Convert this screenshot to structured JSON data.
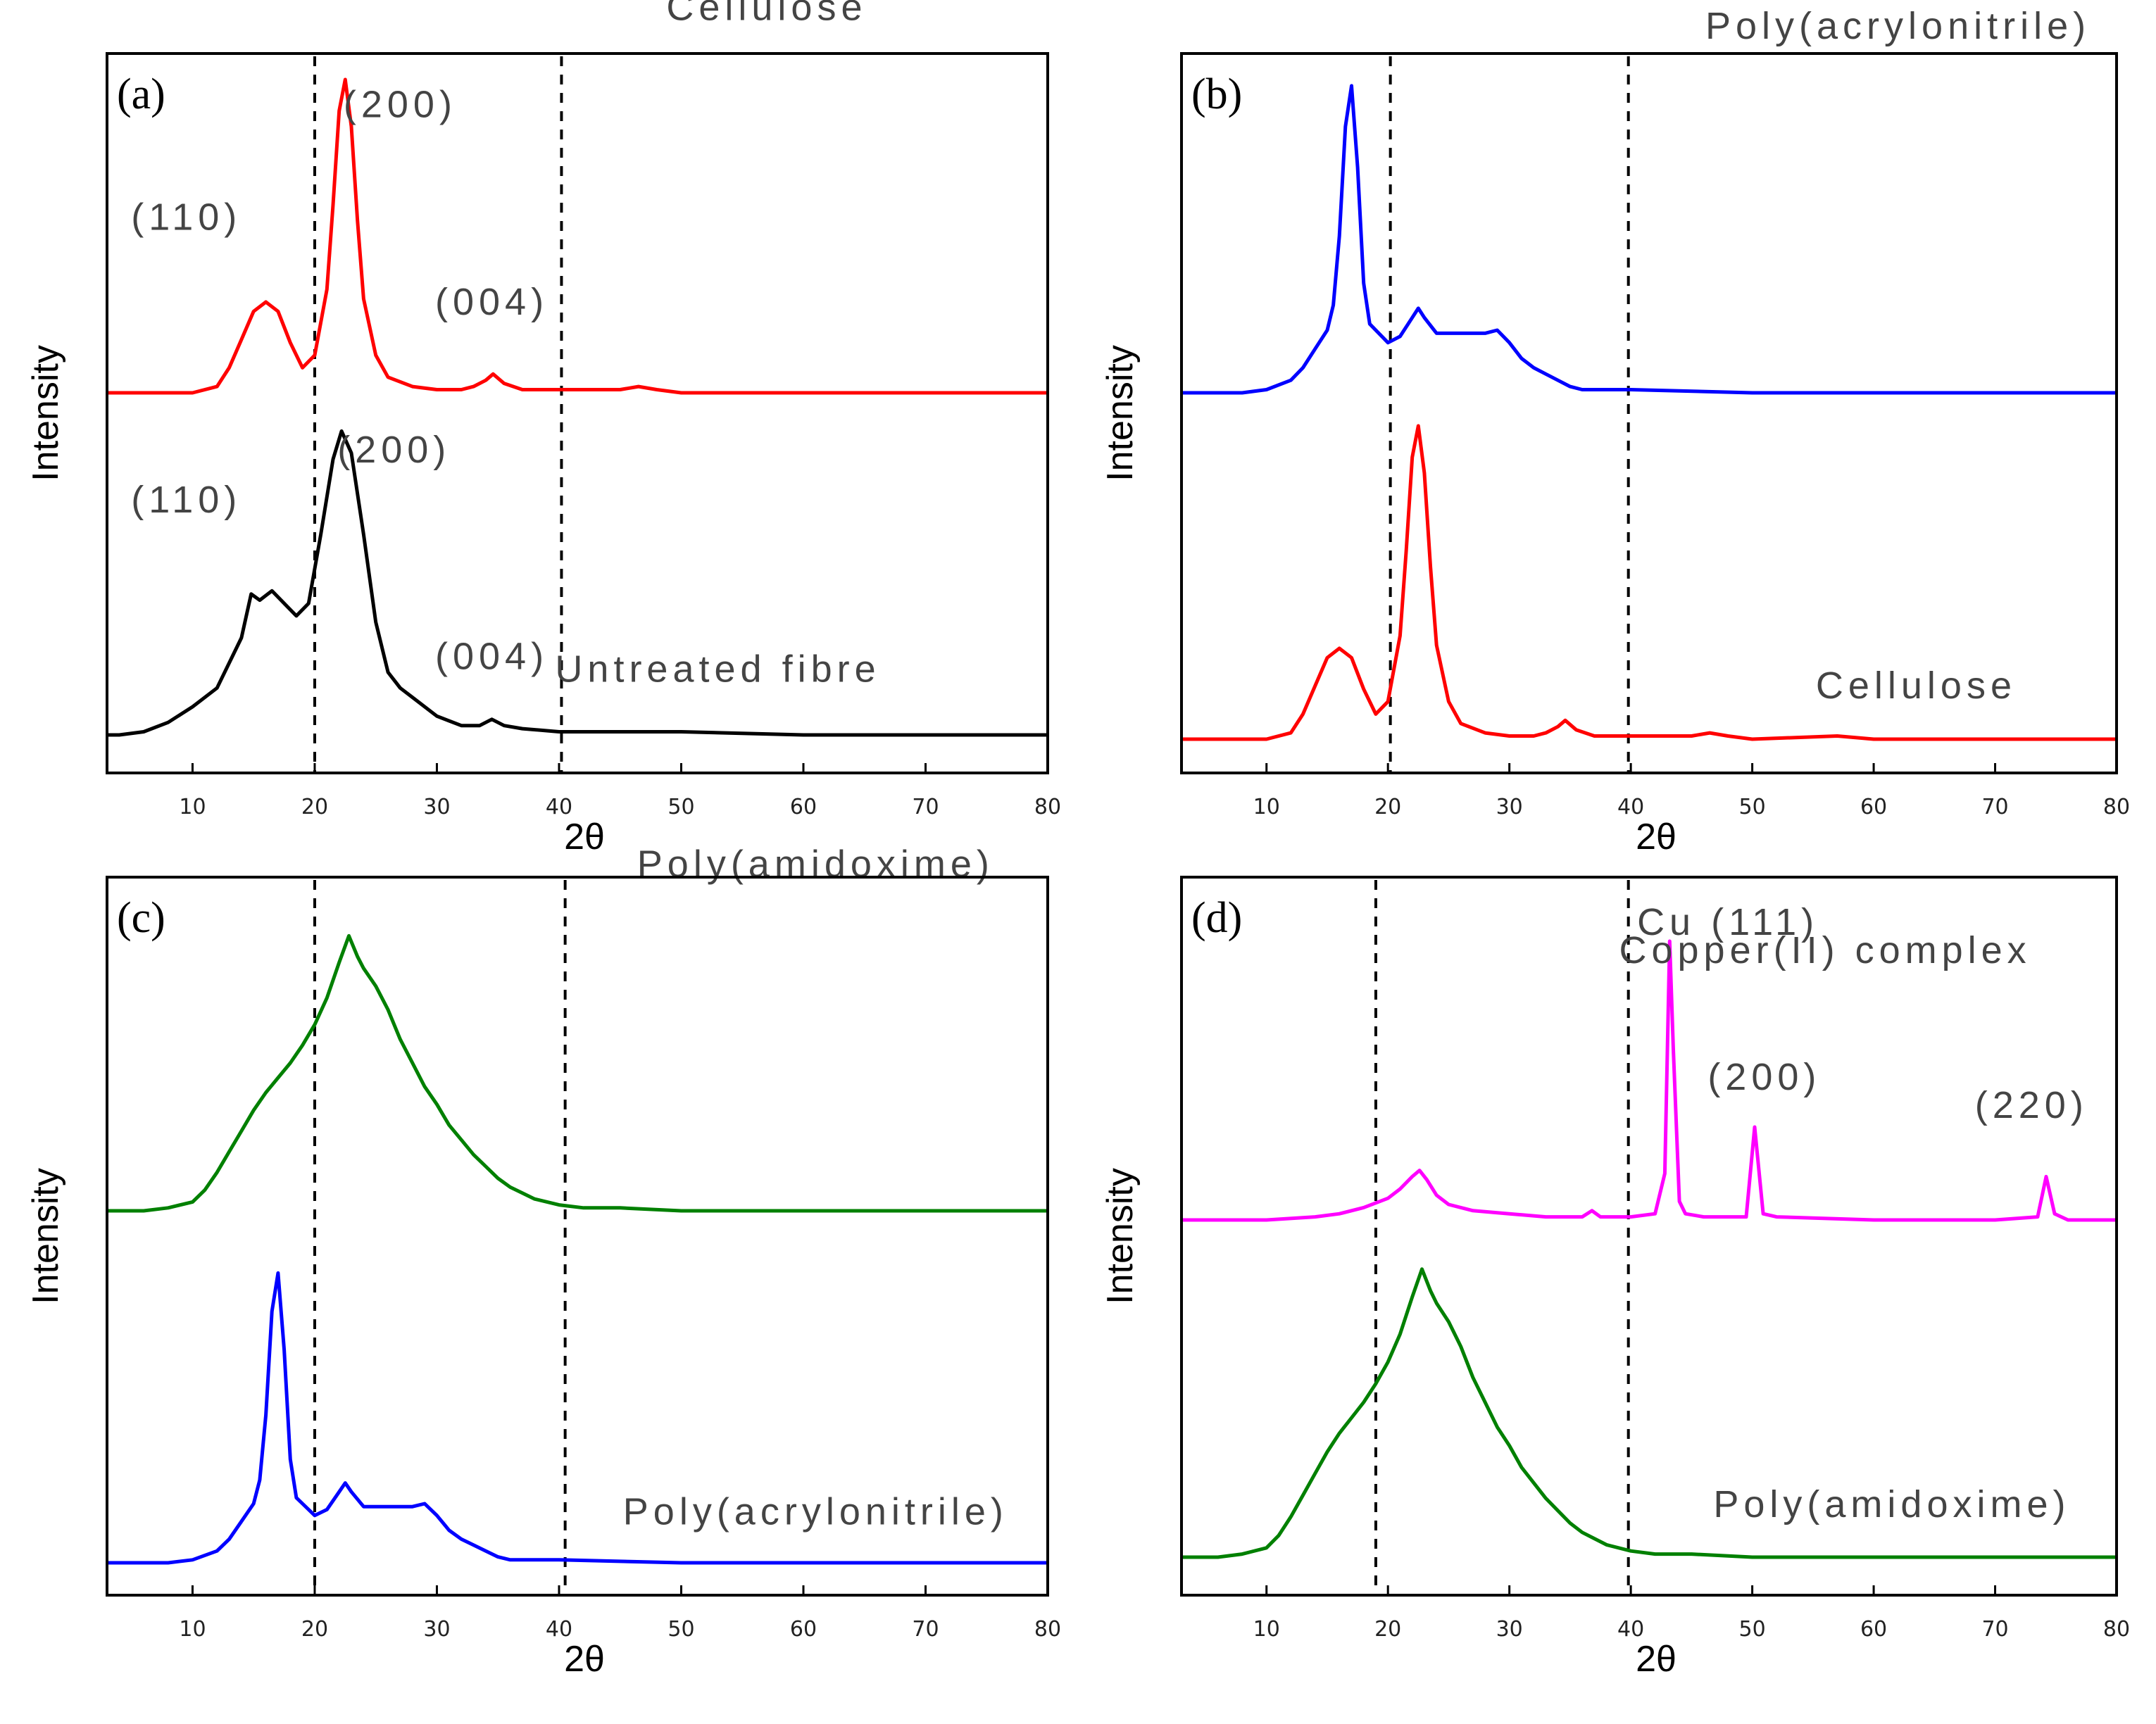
{
  "chart_data": [
    {
      "type": "line",
      "panel_label": "(a)",
      "xlabel": "2θ",
      "ylabel": "Intensity",
      "xlim": [
        3,
        80
      ],
      "xticks": [
        10,
        20,
        30,
        40,
        50,
        60,
        70,
        80
      ],
      "dashed_lines_x": [
        20,
        40.2
      ],
      "series": [
        {
          "name": "Cellulose",
          "color": "#ff0000",
          "offset": 1.0,
          "label_x": 57,
          "label_y": 1.19,
          "x": [
            3,
            10,
            12,
            13,
            14,
            15,
            16,
            17,
            18,
            19,
            20,
            21,
            21.5,
            22,
            22.5,
            23,
            23.5,
            24,
            25,
            26,
            28,
            30,
            32,
            33,
            34,
            34.6,
            35.5,
            37,
            40,
            45,
            46.5,
            48,
            50,
            60,
            70,
            80
          ],
          "y": [
            0,
            0,
            0.02,
            0.08,
            0.17,
            0.26,
            0.29,
            0.26,
            0.16,
            0.08,
            0.12,
            0.33,
            0.6,
            0.9,
            1.0,
            0.85,
            0.55,
            0.3,
            0.12,
            0.05,
            0.02,
            0.01,
            0.01,
            0.02,
            0.04,
            0.06,
            0.03,
            0.01,
            0.01,
            0.01,
            0.02,
            0.01,
            0,
            0,
            0,
            0
          ]
        },
        {
          "name": "Untreated fibre",
          "color": "#000000",
          "offset": 0.0,
          "label_x": 53,
          "label_y": 0.17,
          "x": [
            3,
            4,
            6,
            8,
            10,
            12,
            14,
            14.8,
            15.5,
            16.5,
            17.5,
            18.5,
            19.5,
            20.5,
            21.5,
            22.2,
            23,
            24,
            25,
            26,
            27,
            28,
            30,
            32,
            33.5,
            34.5,
            35.5,
            37,
            40,
            45,
            50,
            60,
            70,
            80
          ],
          "y": [
            0,
            0,
            0.01,
            0.04,
            0.09,
            0.15,
            0.31,
            0.45,
            0.43,
            0.46,
            0.42,
            0.38,
            0.42,
            0.64,
            0.88,
            0.97,
            0.9,
            0.64,
            0.36,
            0.2,
            0.15,
            0.12,
            0.06,
            0.03,
            0.03,
            0.05,
            0.03,
            0.02,
            0.01,
            0.01,
            0.01,
            0,
            0,
            0
          ]
        }
      ],
      "annotations": [
        {
          "text": "(110)",
          "x": 9.5,
          "y": 1.52
        },
        {
          "text": "(200)",
          "x": 27,
          "y": 1.88
        },
        {
          "text": "(004)",
          "x": 34.5,
          "y": 1.25
        },
        {
          "text": "(110)",
          "x": 9.5,
          "y": 0.71
        },
        {
          "text": "(200)",
          "x": 26.5,
          "y": 0.87
        },
        {
          "text": "(004)",
          "x": 34.5,
          "y": 0.21
        }
      ]
    },
    {
      "type": "line",
      "panel_label": "(b)",
      "xlabel": "2θ",
      "ylabel": "Intensity",
      "xlim": [
        3,
        80
      ],
      "xticks": [
        10,
        20,
        30,
        40,
        50,
        60,
        70,
        80
      ],
      "dashed_lines_x": [
        20.2,
        39.8
      ],
      "series": [
        {
          "name": "Poly(acrylonitrile)",
          "color": "#0000ff",
          "offset": 1.0,
          "label_x": 62,
          "label_y": 1.13,
          "x": [
            3,
            8,
            10,
            12,
            13,
            14,
            15,
            15.5,
            16,
            16.5,
            17,
            17.5,
            18,
            18.5,
            19,
            20,
            21,
            22,
            22.5,
            23,
            24,
            25,
            26,
            27,
            28,
            29,
            30,
            31,
            32,
            33,
            34,
            35,
            36,
            40,
            50,
            60,
            70,
            80
          ],
          "y": [
            0,
            0,
            0.01,
            0.04,
            0.08,
            0.14,
            0.2,
            0.28,
            0.5,
            0.85,
            0.98,
            0.72,
            0.35,
            0.22,
            0.2,
            0.16,
            0.18,
            0.24,
            0.27,
            0.24,
            0.19,
            0.19,
            0.19,
            0.19,
            0.19,
            0.2,
            0.16,
            0.11,
            0.08,
            0.06,
            0.04,
            0.02,
            0.01,
            0.01,
            0,
            0,
            0,
            0
          ]
        },
        {
          "name": "Cellulose",
          "color": "#ff0000",
          "offset": 0.0,
          "label_x": 63.5,
          "label_y": 0.13,
          "x": [
            3,
            10,
            12,
            13,
            14,
            15,
            16,
            17,
            18,
            19,
            20,
            21,
            21.5,
            22,
            22.5,
            23,
            23.5,
            24,
            25,
            26,
            28,
            30,
            32,
            33,
            34,
            34.6,
            35.5,
            37,
            40,
            45,
            46.5,
            48,
            50,
            57,
            60,
            70,
            80
          ],
          "y": [
            0,
            0,
            0.02,
            0.08,
            0.17,
            0.26,
            0.29,
            0.26,
            0.16,
            0.08,
            0.12,
            0.33,
            0.6,
            0.9,
            1.0,
            0.85,
            0.55,
            0.3,
            0.12,
            0.05,
            0.02,
            0.01,
            0.01,
            0.02,
            0.04,
            0.06,
            0.03,
            0.01,
            0.01,
            0.01,
            0.02,
            0.01,
            0,
            0.01,
            0,
            0,
            0
          ]
        }
      ],
      "annotations": []
    },
    {
      "type": "line",
      "panel_label": "(c)",
      "xlabel": "2θ",
      "ylabel": "Intensity",
      "xlim": [
        3,
        80
      ],
      "xticks": [
        10,
        20,
        30,
        40,
        50,
        60,
        70,
        80
      ],
      "dashed_lines_x": [
        20,
        40.5
      ],
      "series": [
        {
          "name": "Poly(amidoxime)",
          "color": "#008000",
          "offset": 1.0,
          "label_x": 61,
          "label_y": 1.13,
          "x": [
            3,
            6,
            8,
            10,
            11,
            12,
            13,
            14,
            15,
            16,
            17,
            18,
            19,
            20,
            21,
            22,
            22.8,
            23.5,
            24,
            25,
            26,
            27,
            28,
            29,
            30,
            31,
            32,
            33,
            34,
            35,
            36,
            37,
            38,
            40,
            42,
            45,
            50,
            60,
            70,
            80
          ],
          "y": [
            0,
            0,
            0.01,
            0.03,
            0.07,
            0.13,
            0.2,
            0.27,
            0.34,
            0.4,
            0.45,
            0.5,
            0.56,
            0.63,
            0.72,
            0.84,
            0.93,
            0.86,
            0.82,
            0.76,
            0.68,
            0.58,
            0.5,
            0.42,
            0.36,
            0.29,
            0.24,
            0.19,
            0.15,
            0.11,
            0.08,
            0.06,
            0.04,
            0.02,
            0.01,
            0.01,
            0,
            0,
            0,
            0
          ]
        },
        {
          "name": "Poly(acrylonitrile)",
          "color": "#0000ff",
          "offset": 0.0,
          "label_x": 61,
          "label_y": 0.13,
          "x": [
            3,
            8,
            10,
            12,
            13,
            14,
            15,
            15.5,
            16,
            16.5,
            17,
            17.5,
            18,
            18.5,
            19,
            20,
            21,
            22,
            22.5,
            23,
            24,
            25,
            26,
            27,
            28,
            29,
            30,
            31,
            32,
            33,
            34,
            35,
            36,
            40,
            50,
            60,
            70,
            80
          ],
          "y": [
            0,
            0,
            0.01,
            0.04,
            0.08,
            0.14,
            0.2,
            0.28,
            0.5,
            0.85,
            0.98,
            0.72,
            0.35,
            0.22,
            0.2,
            0.16,
            0.18,
            0.24,
            0.27,
            0.24,
            0.19,
            0.19,
            0.19,
            0.19,
            0.19,
            0.2,
            0.16,
            0.11,
            0.08,
            0.06,
            0.04,
            0.02,
            0.01,
            0.01,
            0,
            0,
            0,
            0
          ]
        }
      ],
      "annotations": []
    },
    {
      "type": "line",
      "panel_label": "(d)",
      "xlabel": "2θ",
      "ylabel": "Intensity",
      "xlim": [
        3,
        80
      ],
      "xticks": [
        10,
        20,
        30,
        40,
        50,
        60,
        70,
        80
      ],
      "dashed_lines_x": [
        19,
        39.8
      ],
      "series": [
        {
          "name": "Copper(II) complex",
          "color": "#ff00ff",
          "offset": 1.0,
          "label_x": 56,
          "label_y": 0.83,
          "x": [
            3,
            10,
            14,
            16,
            18,
            20,
            21,
            22,
            22.6,
            23.2,
            24,
            25,
            27,
            30,
            33,
            36,
            36.8,
            37.5,
            40,
            42,
            42.8,
            43.2,
            43.5,
            44,
            44.5,
            46,
            49.5,
            50.2,
            50.9,
            52,
            60,
            70,
            73.5,
            74.2,
            74.9,
            76,
            80
          ],
          "y": [
            0,
            0,
            0.01,
            0.02,
            0.04,
            0.07,
            0.1,
            0.14,
            0.16,
            0.13,
            0.08,
            0.05,
            0.03,
            0.02,
            0.01,
            0.01,
            0.03,
            0.01,
            0.01,
            0.02,
            0.15,
            0.9,
            0.55,
            0.06,
            0.02,
            0.01,
            0.01,
            0.3,
            0.02,
            0.01,
            0,
            0,
            0.01,
            0.14,
            0.02,
            0,
            0
          ]
        },
        {
          "name": "Poly(amidoxime)",
          "color": "#008000",
          "offset": 0.0,
          "label_x": 61.5,
          "label_y": 0.13,
          "x": [
            3,
            6,
            8,
            10,
            11,
            12,
            13,
            14,
            15,
            16,
            17,
            18,
            19,
            20,
            21,
            22,
            22.8,
            23.5,
            24,
            25,
            26,
            27,
            28,
            29,
            30,
            31,
            32,
            33,
            34,
            35,
            36,
            37,
            38,
            40,
            42,
            45,
            50,
            60,
            70,
            80
          ],
          "y": [
            0,
            0,
            0.01,
            0.03,
            0.07,
            0.13,
            0.2,
            0.27,
            0.34,
            0.4,
            0.45,
            0.5,
            0.56,
            0.63,
            0.72,
            0.84,
            0.93,
            0.86,
            0.82,
            0.76,
            0.68,
            0.58,
            0.5,
            0.42,
            0.36,
            0.29,
            0.24,
            0.19,
            0.15,
            0.11,
            0.08,
            0.06,
            0.04,
            0.02,
            0.01,
            0.01,
            0,
            0,
            0,
            0
          ]
        }
      ],
      "annotations": [
        {
          "text": "Cu (111)",
          "x": 48,
          "y": 1.92
        },
        {
          "text": "(200)",
          "x": 51,
          "y": 1.42
        },
        {
          "text": "(220)",
          "x": 73,
          "y": 1.33
        }
      ]
    }
  ]
}
